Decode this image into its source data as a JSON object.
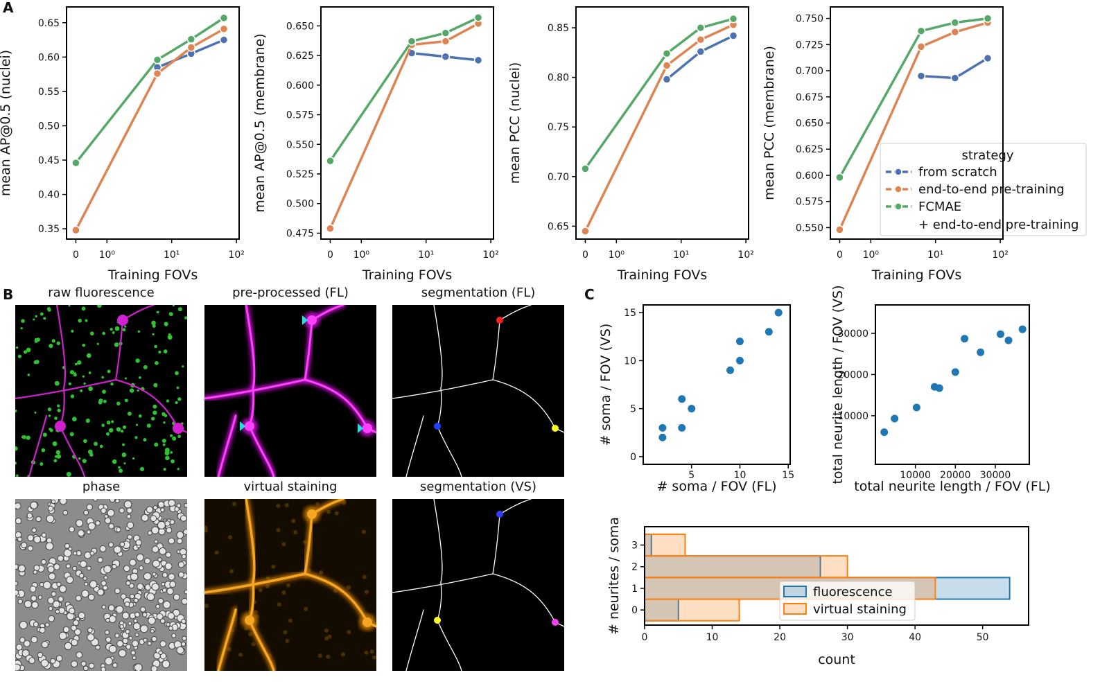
{
  "panels": [
    "A",
    "B",
    "C"
  ],
  "images": [
    {
      "title": "raw fluorescence"
    },
    {
      "title": "pre-processed (FL)"
    },
    {
      "title": "segmentation (FL)"
    },
    {
      "title": "phase"
    },
    {
      "title": "virtual staining"
    },
    {
      "title": "segmentation (VS)"
    }
  ],
  "chart_data": [
    {
      "type": "line",
      "xlabel": "Training FOVs",
      "ylabel": "mean AP@0.5 (nuclei)",
      "xscale": "symlog",
      "linthresh": 1,
      "linscale": 0.48,
      "x": [
        0,
        6,
        20,
        64
      ],
      "xlim": [
        -0.3,
        110
      ],
      "xticks": [
        0,
        {
          "value": 1,
          "label": "10⁰"
        },
        {
          "value": 10,
          "label": "10¹"
        },
        {
          "value": 100,
          "label": "10²"
        }
      ],
      "ylim": [
        0.335,
        0.673
      ],
      "yticks": [
        0.35,
        {
          "value": 0.4,
          "label": "0.40"
        },
        0.45,
        {
          "value": 0.5,
          "label": "0.50"
        },
        0.55,
        {
          "value": 0.6,
          "label": "0.60"
        },
        0.65
      ],
      "series": [
        {
          "color": "#4c72b0",
          "values": [
            null,
            0.585,
            0.605,
            0.625
          ]
        },
        {
          "color": "#dd8452",
          "values": [
            0.348,
            0.576,
            0.614,
            0.641
          ]
        },
        {
          "color": "#55a868",
          "values": [
            0.446,
            0.596,
            0.626,
            0.657
          ]
        }
      ]
    },
    {
      "type": "line",
      "xlabel": "Training FOVs",
      "ylabel": "mean AP@0.5 (membrane)",
      "xscale": "symlog",
      "linthresh": 1,
      "linscale": 0.48,
      "x": [
        0,
        6,
        20,
        64
      ],
      "xlim": [
        -0.3,
        110
      ],
      "xticks": [
        0,
        {
          "value": 1,
          "label": "10⁰"
        },
        {
          "value": 10,
          "label": "10¹"
        },
        {
          "value": 100,
          "label": "10²"
        }
      ],
      "ylim": [
        0.47,
        0.666
      ],
      "yticks": [
        0.475,
        {
          "value": 0.5,
          "label": "0.500"
        },
        0.525,
        {
          "value": 0.55,
          "label": "0.550"
        },
        0.575,
        {
          "value": 0.6,
          "label": "0.600"
        },
        0.625,
        {
          "value": 0.65,
          "label": "0.650"
        }
      ],
      "series": [
        {
          "color": "#4c72b0",
          "values": [
            null,
            0.627,
            0.624,
            0.621
          ]
        },
        {
          "color": "#dd8452",
          "values": [
            0.479,
            0.634,
            0.637,
            0.652
          ]
        },
        {
          "color": "#55a868",
          "values": [
            0.536,
            0.637,
            0.644,
            0.657
          ]
        }
      ]
    },
    {
      "type": "line",
      "xlabel": "Training FOVs",
      "ylabel": "mean PCC (nuclei)",
      "xscale": "symlog",
      "linthresh": 1,
      "linscale": 0.48,
      "x": [
        0,
        6,
        20,
        64
      ],
      "xlim": [
        -0.3,
        110
      ],
      "xticks": [
        0,
        {
          "value": 1,
          "label": "10⁰"
        },
        {
          "value": 10,
          "label": "10¹"
        },
        {
          "value": 100,
          "label": "10²"
        }
      ],
      "ylim": [
        0.637,
        0.871
      ],
      "yticks": [
        0.65,
        {
          "value": 0.7,
          "label": "0.70"
        },
        0.75,
        {
          "value": 0.8,
          "label": "0.80"
        },
        0.85
      ],
      "series": [
        {
          "color": "#4c72b0",
          "values": [
            null,
            0.798,
            0.826,
            0.842
          ]
        },
        {
          "color": "#dd8452",
          "values": [
            0.645,
            0.812,
            0.838,
            0.853
          ]
        },
        {
          "color": "#55a868",
          "values": [
            0.708,
            0.824,
            0.85,
            0.859
          ]
        }
      ]
    },
    {
      "type": "line",
      "xlabel": "Training FOVs",
      "ylabel": "mean PCC (membrane)",
      "xscale": "symlog",
      "linthresh": 1,
      "linscale": 0.48,
      "x": [
        0,
        6,
        20,
        64
      ],
      "xlim": [
        -0.3,
        110
      ],
      "xticks": [
        0,
        {
          "value": 1,
          "label": "10⁰"
        },
        {
          "value": 10,
          "label": "10¹"
        },
        {
          "value": 100,
          "label": "10²"
        }
      ],
      "ylim": [
        0.539,
        0.761
      ],
      "yticks": [
        {
          "value": 0.55,
          "label": "0.550"
        },
        0.575,
        {
          "value": 0.6,
          "label": "0.600"
        },
        0.625,
        {
          "value": 0.65,
          "label": "0.650"
        },
        0.675,
        {
          "value": 0.7,
          "label": "0.700"
        },
        0.725,
        {
          "value": 0.75,
          "label": "0.750"
        }
      ],
      "legend": "lower right",
      "legend_title": "strategy",
      "series": [
        {
          "name": "from scratch",
          "color": "#4c72b0",
          "values": [
            null,
            0.695,
            0.693,
            0.712
          ]
        },
        {
          "name": "end-to-end pre-training",
          "color": "#dd8452",
          "values": [
            0.548,
            0.723,
            0.737,
            0.746
          ]
        },
        {
          "name": "FCMAE\n+ end-to-end pre-training",
          "color": "#55a868",
          "values": [
            0.598,
            0.738,
            0.746,
            0.75
          ]
        }
      ]
    },
    {
      "type": "scatter",
      "xlabel": "# soma / FOV (FL)",
      "ylabel": "# soma / FOV (VS)",
      "color": "#1f77b4",
      "x": [
        2,
        2,
        4,
        4,
        5,
        9,
        10,
        10,
        13,
        14
      ],
      "values": [
        3,
        2,
        6,
        3,
        5,
        9,
        12,
        10,
        13,
        15
      ],
      "xlim": [
        0,
        15.2
      ],
      "xticks": [
        5,
        10,
        15
      ],
      "ylim": [
        -0.8,
        15.8
      ],
      "yticks": [
        0,
        5,
        10,
        15
      ]
    },
    {
      "type": "scatter",
      "xlabel": "total neurite length / FOV (FL)",
      "ylabel": "total neurite length / FOV (VS)",
      "color": "#1f77b4",
      "x": [
        2200,
        4800,
        10300,
        14800,
        16000,
        20000,
        22300,
        26300,
        31300,
        33300,
        36800
      ],
      "values": [
        6000,
        9300,
        12000,
        17000,
        16700,
        20600,
        28700,
        25400,
        29800,
        28300,
        31000
      ],
      "xlim": [
        0,
        38500
      ],
      "xticks": [
        10000,
        20000,
        30000
      ],
      "ylim": [
        -1800,
        36900
      ],
      "yticks": [
        10000,
        20000,
        30000
      ]
    },
    {
      "type": "histogram",
      "orientation": "horizontal",
      "xlabel": "count",
      "ylabel": "# neurites / soma",
      "bins": [
        -0.5,
        0.5,
        1.5,
        2.5,
        3.5
      ],
      "xlim": [
        0,
        56.8
      ],
      "xticks": [
        0,
        10,
        20,
        30,
        40,
        50
      ],
      "ylim": [
        -0.7,
        3.85
      ],
      "yticks": [
        0,
        1,
        2,
        3
      ],
      "legend": "center",
      "series": [
        {
          "name": "fluorescence",
          "color": "#1f77b4",
          "values": [
            5,
            54,
            26,
            1
          ]
        },
        {
          "name": "virtual staining",
          "color": "#ff7f0e",
          "values": [
            14,
            43,
            30,
            6
          ]
        }
      ]
    }
  ]
}
